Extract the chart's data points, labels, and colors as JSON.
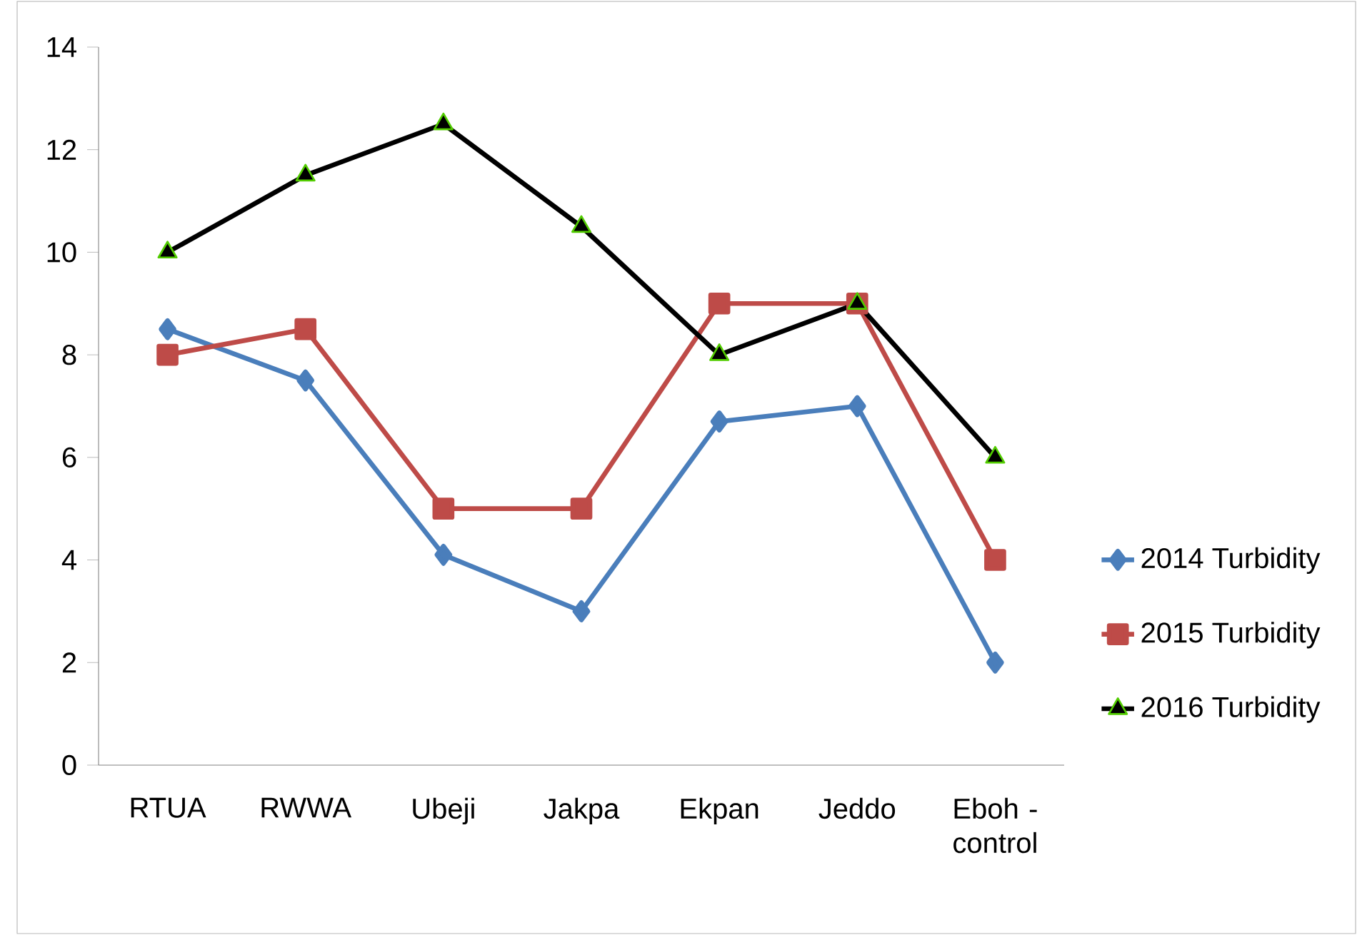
{
  "chart_data": {
    "type": "line",
    "categories": [
      "RTUA",
      "RWWA",
      "Ubeji",
      "Jakpa",
      "Ekpan",
      "Jeddo",
      "Eboh - control"
    ],
    "series": [
      {
        "name": "2014 Turbidity",
        "color": "#4a7ebb",
        "marker": "diamond",
        "values": [
          8.5,
          7.5,
          4.1,
          3.0,
          6.7,
          7.0,
          2.0
        ]
      },
      {
        "name": "2015 Turbidity",
        "color": "#be4b48",
        "marker": "square",
        "values": [
          8,
          8.5,
          5,
          5,
          9,
          9,
          4
        ]
      },
      {
        "name": "2016 Turbidity",
        "color": "#000000",
        "marker": "triangle",
        "values": [
          10,
          11.5,
          12.5,
          10.5,
          8,
          9,
          6
        ]
      }
    ],
    "ylim": [
      0,
      14
    ],
    "yticks": [
      0,
      2,
      4,
      6,
      8,
      10,
      12,
      14
    ],
    "grid": false,
    "legend": "right"
  }
}
